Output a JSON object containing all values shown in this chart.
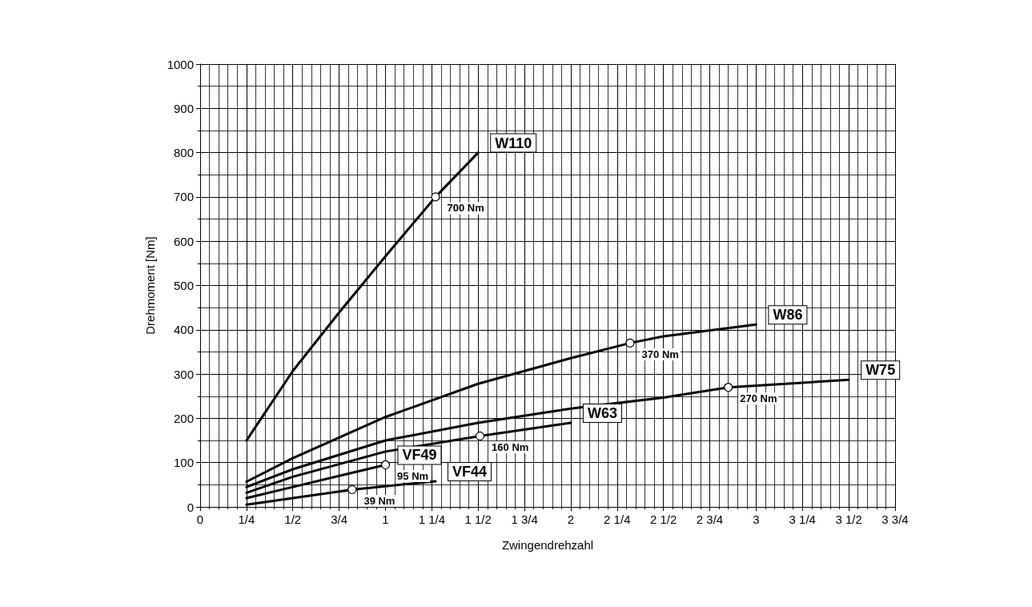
{
  "chart_data": {
    "type": "line",
    "xlabel": "Zwingendrehzahl",
    "ylabel": "Drehmoment [Nm]",
    "xlim": [
      0,
      3.75
    ],
    "xticks": [
      0,
      {
        "value": 0.25,
        "label": "1/4"
      },
      {
        "value": 0.5,
        "label": "1/2"
      },
      {
        "value": 0.75,
        "label": "3/4"
      },
      1,
      {
        "value": 1.25,
        "label": "1 1/4"
      },
      {
        "value": 1.5,
        "label": "1 1/2"
      },
      {
        "value": 1.75,
        "label": "1 3/4"
      },
      2,
      {
        "value": 2.25,
        "label": "2 1/4"
      },
      {
        "value": 2.5,
        "label": "2 1/2"
      },
      {
        "value": 2.75,
        "label": "2 3/4"
      },
      3,
      {
        "value": 3.25,
        "label": "3 1/4"
      },
      {
        "value": 3.5,
        "label": "3 1/2"
      },
      {
        "value": 3.75,
        "label": "3 3/4"
      }
    ],
    "ylim": [
      0,
      1000
    ],
    "yticks": [
      0,
      100,
      200,
      300,
      400,
      500,
      600,
      700,
      800,
      900,
      1000
    ],
    "grid": true,
    "legend": false,
    "marker": "none",
    "line_style": "solid",
    "series": [
      {
        "name": "W110",
        "color": "#000000",
        "x": [
          0.25,
          0.5,
          0.75,
          1,
          1.27,
          1.5
        ],
        "values": [
          150,
          307,
          439,
          566,
          700,
          800
        ]
      },
      {
        "name": "W86",
        "color": "#000000",
        "x": [
          0.25,
          0.5,
          1,
          1.5,
          2,
          2.32,
          2.5,
          3
        ],
        "values": [
          57,
          110,
          203,
          278,
          336,
          370,
          385,
          412
        ]
      },
      {
        "name": "W75",
        "color": "#000000",
        "x": [
          0.25,
          0.5,
          1,
          1.5,
          2,
          2.5,
          2.85,
          3.5
        ],
        "values": [
          45,
          85,
          150,
          190,
          222,
          247,
          270,
          287
        ]
      },
      {
        "name": "W63",
        "color": "#000000",
        "x": [
          0.25,
          0.5,
          1,
          1.51,
          2
        ],
        "values": [
          32,
          68,
          125,
          160,
          190
        ]
      },
      {
        "name": "VF49",
        "color": "#000000",
        "x": [
          0.25,
          0.5,
          0.75,
          1
        ],
        "values": [
          20,
          45,
          70,
          95
        ]
      },
      {
        "name": "VF44",
        "color": "#000000",
        "x": [
          0.25,
          0.5,
          0.82,
          1.27
        ],
        "values": [
          5,
          20,
          39,
          58
        ]
      }
    ],
    "annotations": [
      {
        "text": "700 Nm",
        "x": 1.27,
        "y": 700
      },
      {
        "text": "370 Nm",
        "x": 2.32,
        "y": 370
      },
      {
        "text": "270 Nm",
        "x": 2.85,
        "y": 270
      },
      {
        "text": "160 Nm",
        "x": 1.51,
        "y": 160
      },
      {
        "text": "95 Nm",
        "x": 1,
        "y": 95
      },
      {
        "text": "39 Nm",
        "x": 0.82,
        "y": 39
      }
    ]
  }
}
